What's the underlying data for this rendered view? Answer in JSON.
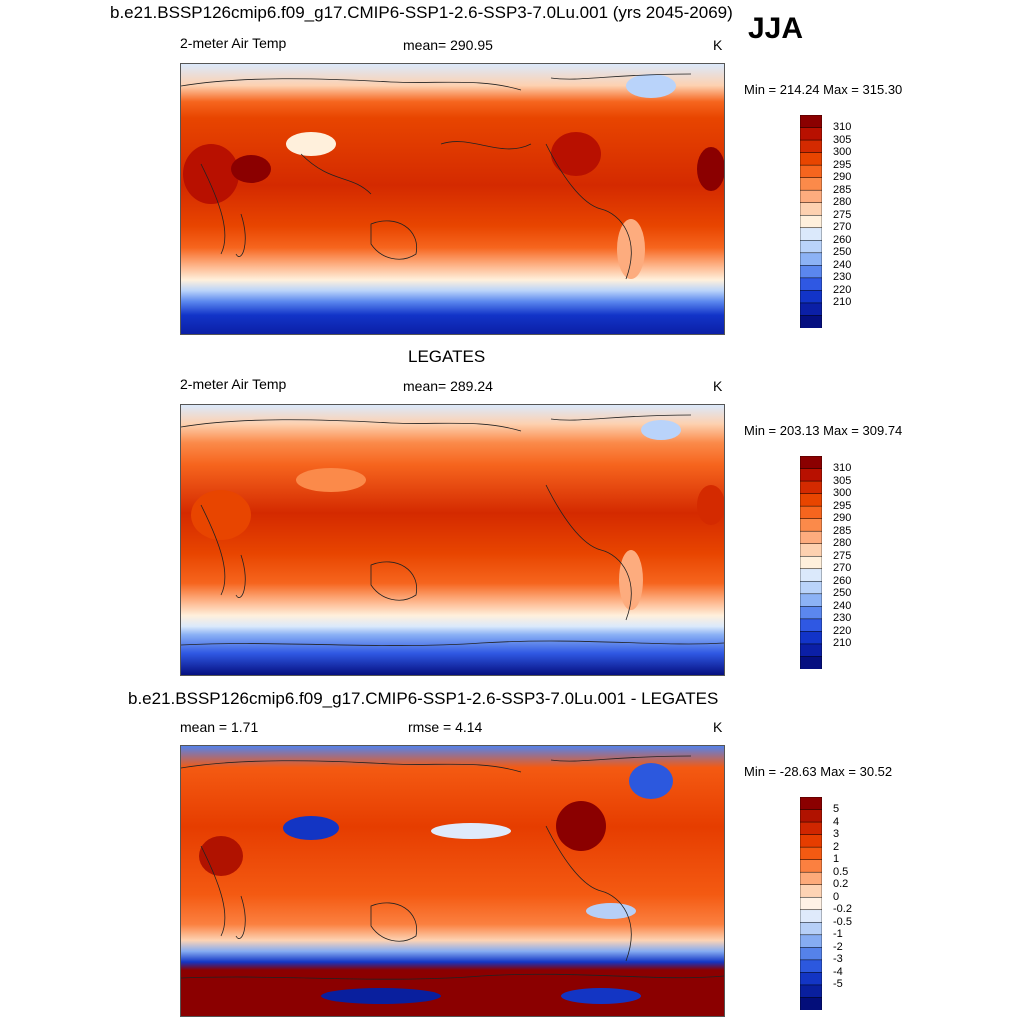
{
  "header": {
    "title": "b.e21.BSSP126cmip6.f09_g17.CMIP6-SSP1-2.6-SSP3-7.0Lu.001 (yrs 2045-2069)",
    "season": "JJA"
  },
  "panels": [
    {
      "id": "model",
      "title": "",
      "variable": "2-meter Air Temp",
      "stat": "mean= 290.95",
      "units": "K",
      "minmax": "Min = 214.24 Max = 315.30",
      "colorbar": {
        "labels": [
          "310",
          "305",
          "300",
          "295",
          "290",
          "285",
          "280",
          "275",
          "270",
          "260",
          "250",
          "240",
          "230",
          "220",
          "210"
        ],
        "colors": [
          "#8b0000",
          "#b81000",
          "#d42a00",
          "#e84500",
          "#f6651e",
          "#fb8a4a",
          "#fdac7e",
          "#fdd1b0",
          "#fff0dc",
          "#dbe9fb",
          "#b9d3fa",
          "#8cb2f5",
          "#5b87ee",
          "#2f58e3",
          "#1234c8",
          "#0b1fa6",
          "#050f80"
        ]
      }
    },
    {
      "id": "obs",
      "title": "LEGATES",
      "variable": "2-meter Air Temp",
      "stat": "mean= 289.24",
      "units": "K",
      "minmax": "Min = 203.13 Max = 309.74",
      "colorbar": {
        "labels": [
          "310",
          "305",
          "300",
          "295",
          "290",
          "285",
          "280",
          "275",
          "270",
          "260",
          "250",
          "240",
          "230",
          "220",
          "210"
        ],
        "colors": [
          "#8b0000",
          "#b81000",
          "#d42a00",
          "#e84500",
          "#f6651e",
          "#fb8a4a",
          "#fdac7e",
          "#fdd1b0",
          "#fff0dc",
          "#dbe9fb",
          "#b9d3fa",
          "#8cb2f5",
          "#5b87ee",
          "#2f58e3",
          "#1234c8",
          "#0b1fa6",
          "#050f80"
        ]
      }
    },
    {
      "id": "diff",
      "title": "b.e21.BSSP126cmip6.f09_g17.CMIP6-SSP1-2.6-SSP3-7.0Lu.001 - LEGATES",
      "variable": "mean =   1.71",
      "stat": "rmse =   4.14",
      "units": "K",
      "minmax": "Min = -28.63 Max =  30.52",
      "colorbar": {
        "labels": [
          "5",
          "4",
          "3",
          "2",
          "1",
          "0.5",
          "0.2",
          "0",
          "-0.2",
          "-0.5",
          "-1",
          "-2",
          "-3",
          "-4",
          "-5"
        ],
        "colors": [
          "#8b0000",
          "#b01200",
          "#d02600",
          "#e63d00",
          "#f45a12",
          "#fb8040",
          "#fdaa7a",
          "#fdd3b4",
          "#fff2e6",
          "#dfeafb",
          "#b6cff7",
          "#86acf2",
          "#5582ea",
          "#2c58de",
          "#1335c4",
          "#091f9e",
          "#030e7a"
        ]
      }
    }
  ],
  "chart_data": [
    {
      "type": "heatmap",
      "title": "b.e21.BSSP126cmip6.f09_g17.CMIP6-SSP1-2.6-SSP3-7.0Lu.001 (yrs 2045-2069)",
      "variable": "2-meter Air Temp",
      "season": "JJA",
      "units": "K",
      "mean": 290.95,
      "min": 214.24,
      "max": 315.3,
      "levels": [
        210,
        220,
        230,
        240,
        250,
        260,
        270,
        275,
        280,
        285,
        290,
        295,
        300,
        305,
        310
      ],
      "x": "longitude",
      "y": "latitude"
    },
    {
      "type": "heatmap",
      "title": "LEGATES",
      "variable": "2-meter Air Temp",
      "season": "JJA",
      "units": "K",
      "mean": 289.24,
      "min": 203.13,
      "max": 309.74,
      "levels": [
        210,
        220,
        230,
        240,
        250,
        260,
        270,
        275,
        280,
        285,
        290,
        295,
        300,
        305,
        310
      ],
      "x": "longitude",
      "y": "latitude"
    },
    {
      "type": "heatmap",
      "title": "b.e21.BSSP126cmip6.f09_g17.CMIP6-SSP1-2.6-SSP3-7.0Lu.001 - LEGATES",
      "units": "K",
      "mean": 1.71,
      "rmse": 4.14,
      "min": -28.63,
      "max": 30.52,
      "levels": [
        -5,
        -4,
        -3,
        -2,
        -1,
        -0.5,
        -0.2,
        0,
        0.2,
        0.5,
        1,
        2,
        3,
        4,
        5
      ],
      "x": "longitude",
      "y": "latitude"
    }
  ]
}
